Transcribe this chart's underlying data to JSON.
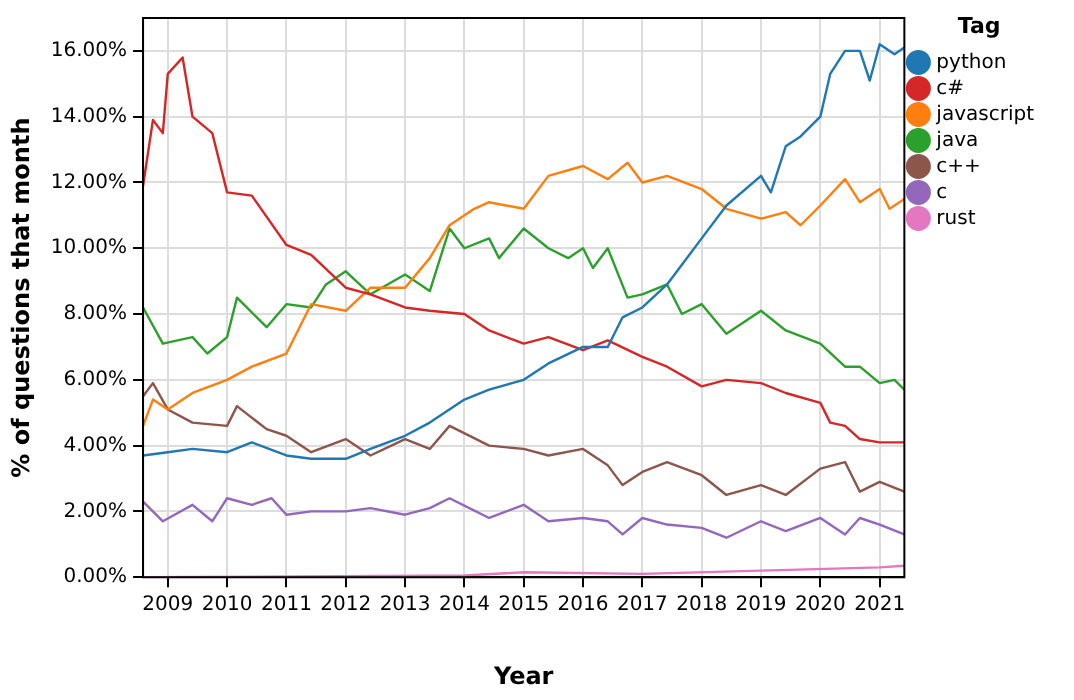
{
  "chart_data": {
    "type": "line",
    "xlabel": "Year",
    "ylabel": "% of questions that month",
    "legend_title": "Tag",
    "legend": "top right",
    "grid": true,
    "marker": "none",
    "line_style": "solid",
    "xlim": [
      "2008-08",
      "2021-06"
    ],
    "xticks": [
      "2009",
      "2010",
      "2011",
      "2012",
      "2013",
      "2014",
      "2015",
      "2016",
      "2017",
      "2018",
      "2019",
      "2020",
      "2021"
    ],
    "ylim": [
      0,
      17
    ],
    "yticks": [
      {
        "value": 0,
        "label": "0.00%"
      },
      {
        "value": 2,
        "label": "2.00%"
      },
      {
        "value": 4,
        "label": "4.00%"
      },
      {
        "value": 6,
        "label": "6.00%"
      },
      {
        "value": 8,
        "label": "8.00%"
      },
      {
        "value": 10,
        "label": "10.00%"
      },
      {
        "value": 12,
        "label": "12.00%"
      },
      {
        "value": 14,
        "label": "14.00%"
      },
      {
        "value": 16,
        "label": "16.00%"
      }
    ],
    "series": [
      {
        "name": "python",
        "color": "#1f77b4",
        "x": [
          "2008-08",
          "2009-01",
          "2009-06",
          "2010-01",
          "2010-06",
          "2011-01",
          "2011-06",
          "2012-01",
          "2012-06",
          "2013-01",
          "2013-06",
          "2014-01",
          "2014-06",
          "2015-01",
          "2015-06",
          "2016-01",
          "2016-06",
          "2016-09",
          "2017-01",
          "2017-06",
          "2018-01",
          "2018-06",
          "2019-01",
          "2019-03",
          "2019-06",
          "2019-09",
          "2020-01",
          "2020-03",
          "2020-06",
          "2020-09",
          "2020-11",
          "2021-01",
          "2021-04",
          "2021-06"
        ],
        "values": [
          3.7,
          3.8,
          3.9,
          3.8,
          4.1,
          3.7,
          3.6,
          3.6,
          3.9,
          4.3,
          4.7,
          5.4,
          5.7,
          6.0,
          6.5,
          7.0,
          7.0,
          7.9,
          8.2,
          8.9,
          10.3,
          11.3,
          12.2,
          11.7,
          13.1,
          13.4,
          14.0,
          15.3,
          16.0,
          16.0,
          15.1,
          16.2,
          15.9,
          16.1
        ]
      },
      {
        "name": "c#",
        "color": "#d62728",
        "x": [
          "2008-08",
          "2008-10",
          "2008-12",
          "2009-01",
          "2009-04",
          "2009-06",
          "2009-10",
          "2010-01",
          "2010-06",
          "2011-01",
          "2011-06",
          "2012-01",
          "2012-06",
          "2013-01",
          "2013-06",
          "2014-01",
          "2014-06",
          "2015-01",
          "2015-06",
          "2016-01",
          "2016-06",
          "2017-01",
          "2017-06",
          "2018-01",
          "2018-06",
          "2019-01",
          "2019-06",
          "2020-01",
          "2020-03",
          "2020-06",
          "2020-09",
          "2021-01",
          "2021-06"
        ],
        "values": [
          11.9,
          13.9,
          13.5,
          15.3,
          15.8,
          14.0,
          13.5,
          11.7,
          11.6,
          10.1,
          9.8,
          8.8,
          8.6,
          8.2,
          8.1,
          8.0,
          7.5,
          7.1,
          7.3,
          6.9,
          7.2,
          6.7,
          6.4,
          5.8,
          6.0,
          5.9,
          5.6,
          5.3,
          4.7,
          4.6,
          4.2,
          4.1,
          4.1
        ]
      },
      {
        "name": "javascript",
        "color": "#ff7f0e",
        "x": [
          "2008-08",
          "2008-10",
          "2009-01",
          "2009-06",
          "2010-01",
          "2010-06",
          "2011-01",
          "2011-06",
          "2012-01",
          "2012-06",
          "2013-01",
          "2013-06",
          "2013-10",
          "2014-03",
          "2014-06",
          "2015-01",
          "2015-06",
          "2016-01",
          "2016-06",
          "2016-10",
          "2017-01",
          "2017-06",
          "2018-01",
          "2018-06",
          "2019-01",
          "2019-06",
          "2019-09",
          "2020-01",
          "2020-06",
          "2020-09",
          "2021-01",
          "2021-03",
          "2021-06"
        ],
        "values": [
          4.6,
          5.4,
          5.1,
          5.6,
          6.0,
          6.4,
          6.8,
          8.3,
          8.1,
          8.8,
          8.8,
          9.7,
          10.7,
          11.2,
          11.4,
          11.2,
          12.2,
          12.5,
          12.1,
          12.6,
          12.0,
          12.2,
          11.8,
          11.2,
          10.9,
          11.1,
          10.7,
          11.3,
          12.1,
          11.4,
          11.8,
          11.2,
          11.5
        ]
      },
      {
        "name": "java",
        "color": "#2ca02c",
        "x": [
          "2008-08",
          "2008-12",
          "2009-06",
          "2009-09",
          "2010-01",
          "2010-03",
          "2010-09",
          "2011-01",
          "2011-06",
          "2011-09",
          "2012-01",
          "2012-06",
          "2013-01",
          "2013-06",
          "2013-10",
          "2014-01",
          "2014-06",
          "2014-08",
          "2015-01",
          "2015-06",
          "2015-10",
          "2016-01",
          "2016-03",
          "2016-06",
          "2016-10",
          "2017-01",
          "2017-06",
          "2017-09",
          "2018-01",
          "2018-06",
          "2019-01",
          "2019-06",
          "2020-01",
          "2020-06",
          "2020-09",
          "2021-01",
          "2021-04",
          "2021-06"
        ],
        "values": [
          8.2,
          7.1,
          7.3,
          6.8,
          7.3,
          8.5,
          7.6,
          8.3,
          8.2,
          8.9,
          9.3,
          8.6,
          9.2,
          8.7,
          10.6,
          10.0,
          10.3,
          9.7,
          10.6,
          10.0,
          9.7,
          10.0,
          9.4,
          10.0,
          8.5,
          8.6,
          8.9,
          8.0,
          8.3,
          7.4,
          8.1,
          7.5,
          7.1,
          6.4,
          6.4,
          5.9,
          6.0,
          5.7
        ]
      },
      {
        "name": "c++",
        "color": "#8c564b",
        "x": [
          "2008-08",
          "2008-10",
          "2009-01",
          "2009-06",
          "2010-01",
          "2010-03",
          "2010-09",
          "2011-01",
          "2011-06",
          "2012-01",
          "2012-06",
          "2013-01",
          "2013-06",
          "2013-10",
          "2014-06",
          "2015-01",
          "2015-06",
          "2016-01",
          "2016-06",
          "2016-09",
          "2017-01",
          "2017-06",
          "2018-01",
          "2018-06",
          "2019-01",
          "2019-06",
          "2020-01",
          "2020-06",
          "2020-09",
          "2021-01",
          "2021-06"
        ],
        "values": [
          5.5,
          5.9,
          5.1,
          4.7,
          4.6,
          5.2,
          4.5,
          4.3,
          3.8,
          4.2,
          3.7,
          4.2,
          3.9,
          4.6,
          4.0,
          3.9,
          3.7,
          3.9,
          3.4,
          2.8,
          3.2,
          3.5,
          3.1,
          2.5,
          2.8,
          2.5,
          3.3,
          3.5,
          2.6,
          2.9,
          2.6
        ]
      },
      {
        "name": "c",
        "color": "#9467bd",
        "x": [
          "2008-08",
          "2008-12",
          "2009-06",
          "2009-10",
          "2010-01",
          "2010-06",
          "2010-10",
          "2011-01",
          "2011-06",
          "2012-01",
          "2012-06",
          "2013-01",
          "2013-06",
          "2013-10",
          "2014-06",
          "2015-01",
          "2015-06",
          "2016-01",
          "2016-06",
          "2016-09",
          "2017-01",
          "2017-06",
          "2018-01",
          "2018-06",
          "2019-01",
          "2019-06",
          "2020-01",
          "2020-06",
          "2020-09",
          "2021-01",
          "2021-06"
        ],
        "values": [
          2.3,
          1.7,
          2.2,
          1.7,
          2.4,
          2.2,
          2.4,
          1.9,
          2.0,
          2.0,
          2.1,
          1.9,
          2.1,
          2.4,
          1.8,
          2.2,
          1.7,
          1.8,
          1.7,
          1.3,
          1.8,
          1.6,
          1.5,
          1.2,
          1.7,
          1.4,
          1.8,
          1.3,
          1.8,
          1.6,
          1.3
        ]
      },
      {
        "name": "rust",
        "color": "#e377c2",
        "x": [
          "2008-08",
          "2014-01",
          "2015-01",
          "2017-01",
          "2019-01",
          "2021-01",
          "2021-06"
        ],
        "values": [
          0,
          0.05,
          0.15,
          0.1,
          0.2,
          0.3,
          0.35
        ]
      }
    ]
  }
}
